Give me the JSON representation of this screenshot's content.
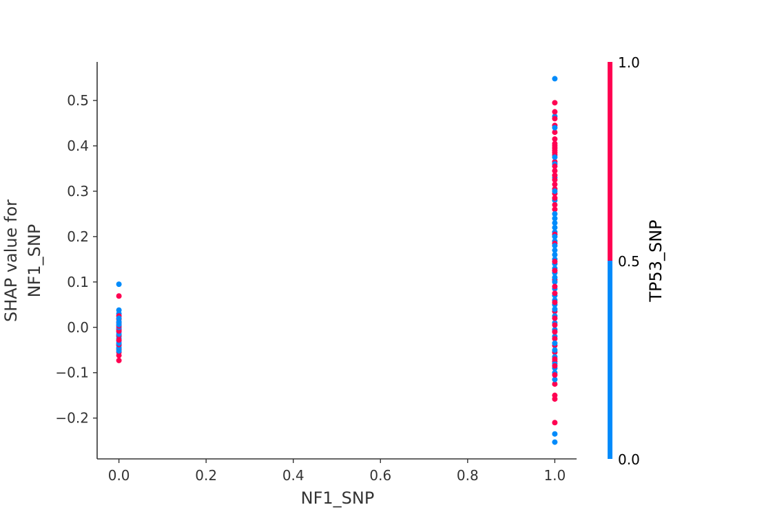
{
  "chart_data": {
    "type": "scatter",
    "title": "",
    "xlabel": "NF1_SNP",
    "ylabel_lines": [
      "SHAP value for",
      "NF1_SNP"
    ],
    "xlim": [
      -0.05,
      1.05
    ],
    "ylim": [
      -0.29,
      0.585
    ],
    "x_ticks": [
      0.0,
      0.2,
      0.4,
      0.6,
      0.8,
      1.0
    ],
    "x_tick_labels": [
      "0.0",
      "0.2",
      "0.4",
      "0.6",
      "0.8",
      "1.0"
    ],
    "y_ticks": [
      -0.2,
      -0.1,
      0.0,
      0.1,
      0.2,
      0.3,
      0.4,
      0.5
    ],
    "y_tick_labels": [
      "−0.2",
      "−0.1",
      "0.0",
      "0.1",
      "0.2",
      "0.3",
      "0.4",
      "0.5"
    ],
    "grid": false,
    "colors": {
      "low": "#008bfb",
      "high": "#ff0052",
      "axis": "#333333"
    },
    "colorbar": {
      "title": "TP53_SNP",
      "ticks": [
        "0.0",
        "0.5",
        "1.0"
      ],
      "split_value": 0.5
    },
    "series": [
      {
        "x": 0.0,
        "points_low": [
          0.095,
          0.038,
          0.03,
          0.02,
          0.012,
          0.006,
          0.0,
          -0.005,
          -0.01,
          -0.015,
          -0.02,
          -0.025,
          -0.03,
          -0.035,
          -0.04,
          -0.045,
          -0.052
        ],
        "points_high": [
          0.069,
          0.025,
          0.018,
          0.01,
          0.003,
          -0.003,
          -0.008,
          -0.018,
          -0.028,
          -0.038,
          -0.048,
          -0.055,
          -0.062,
          -0.073
        ]
      },
      {
        "x": 1.0,
        "points_low": [
          0.548,
          0.465,
          0.44,
          0.375,
          0.36,
          0.33,
          0.3,
          0.28,
          0.25,
          0.24,
          0.23,
          0.22,
          0.21,
          0.2,
          0.19,
          0.18,
          0.17,
          0.16,
          0.15,
          0.14,
          0.13,
          0.12,
          0.11,
          0.1,
          0.085,
          0.07,
          0.06,
          0.05,
          0.04,
          0.025,
          0.01,
          -0.005,
          -0.02,
          -0.035,
          -0.05,
          -0.065,
          -0.08,
          -0.09,
          -0.1,
          -0.115,
          -0.235,
          -0.253
        ],
        "points_high": [
          0.495,
          0.475,
          0.46,
          0.445,
          0.43,
          0.415,
          0.405,
          0.4,
          0.395,
          0.39,
          0.385,
          0.38,
          0.365,
          0.355,
          0.345,
          0.335,
          0.325,
          0.315,
          0.305,
          0.295,
          0.285,
          0.27,
          0.26,
          0.205,
          0.185,
          0.145,
          0.125,
          0.105,
          0.09,
          0.075,
          0.055,
          0.035,
          0.02,
          0.005,
          -0.01,
          -0.025,
          -0.04,
          -0.055,
          -0.07,
          -0.075,
          -0.085,
          -0.105,
          -0.125,
          -0.15,
          -0.158,
          -0.21
        ]
      }
    ]
  }
}
